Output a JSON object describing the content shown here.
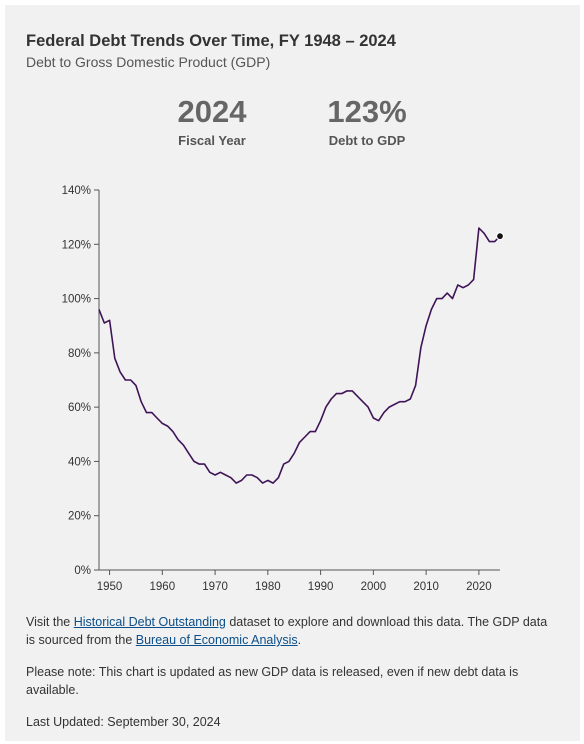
{
  "header": {
    "title": "Federal Debt Trends Over Time, FY 1948 – 2024",
    "subtitle": "Debt to Gross Domestic Product (GDP)"
  },
  "stats": {
    "year_value": "2024",
    "year_label": "Fiscal Year",
    "debt_value": "123%",
    "debt_label": "Debt to GDP"
  },
  "chart_data": {
    "type": "line",
    "title": "Federal Debt Trends Over Time, FY 1948 – 2024",
    "subtitle": "Debt to Gross Domestic Product (GDP)",
    "xlabel": "",
    "ylabel": "",
    "xlim": [
      1948,
      2024
    ],
    "ylim": [
      0,
      140
    ],
    "x_ticks": [
      1950,
      1960,
      1970,
      1980,
      1990,
      2000,
      2010,
      2020
    ],
    "y_ticks": [
      0,
      20,
      40,
      60,
      80,
      100,
      120,
      140
    ],
    "y_tick_labels": [
      "0%",
      "20%",
      "40%",
      "60%",
      "80%",
      "100%",
      "120%",
      "140%"
    ],
    "grid": false,
    "line_color": "#3f1457",
    "highlight": {
      "x": 2024,
      "y": 123
    },
    "series": [
      {
        "x": [
          1948,
          1949,
          1950,
          1951,
          1952,
          1953,
          1954,
          1955,
          1956,
          1957,
          1958,
          1959,
          1960,
          1961,
          1962,
          1963,
          1964,
          1965,
          1966,
          1967,
          1968,
          1969,
          1970,
          1971,
          1972,
          1973,
          1974,
          1975,
          1976,
          1977,
          1978,
          1979,
          1980,
          1981,
          1982,
          1983,
          1984,
          1985,
          1986,
          1987,
          1988,
          1989,
          1990,
          1991,
          1992,
          1993,
          1994,
          1995,
          1996,
          1997,
          1998,
          1999,
          2000,
          2001,
          2002,
          2003,
          2004,
          2005,
          2006,
          2007,
          2008,
          2009,
          2010,
          2011,
          2012,
          2013,
          2014,
          2015,
          2016,
          2017,
          2018,
          2019,
          2020,
          2021,
          2022,
          2023,
          2024
        ],
        "values": [
          96,
          91,
          92,
          78,
          73,
          70,
          70,
          68,
          62,
          58,
          58,
          56,
          54,
          53,
          51,
          48,
          46,
          43,
          40,
          39,
          39,
          36,
          35,
          36,
          35,
          34,
          32,
          33,
          35,
          35,
          34,
          32,
          33,
          32,
          34,
          39,
          40,
          43,
          47,
          49,
          51,
          51,
          55,
          60,
          63,
          65,
          65,
          66,
          66,
          64,
          62,
          60,
          56,
          55,
          58,
          60,
          61,
          62,
          62,
          63,
          68,
          82,
          90,
          96,
          100,
          100,
          102,
          100,
          105,
          104,
          105,
          107,
          126,
          124,
          121,
          121,
          123
        ]
      }
    ]
  },
  "notes": {
    "visit_prefix": "Visit the ",
    "visit_link": "Historical Debt Outstanding",
    "visit_middle": " dataset to explore and download this data. The GDP data is sourced from the ",
    "visit_link2": "Bureau of Economic Analysis",
    "visit_suffix": ".",
    "please_note": "Please note: This chart is updated as new GDP data is released, even if new debt data is available.",
    "last_updated": "Last Updated: September 30, 2024"
  }
}
